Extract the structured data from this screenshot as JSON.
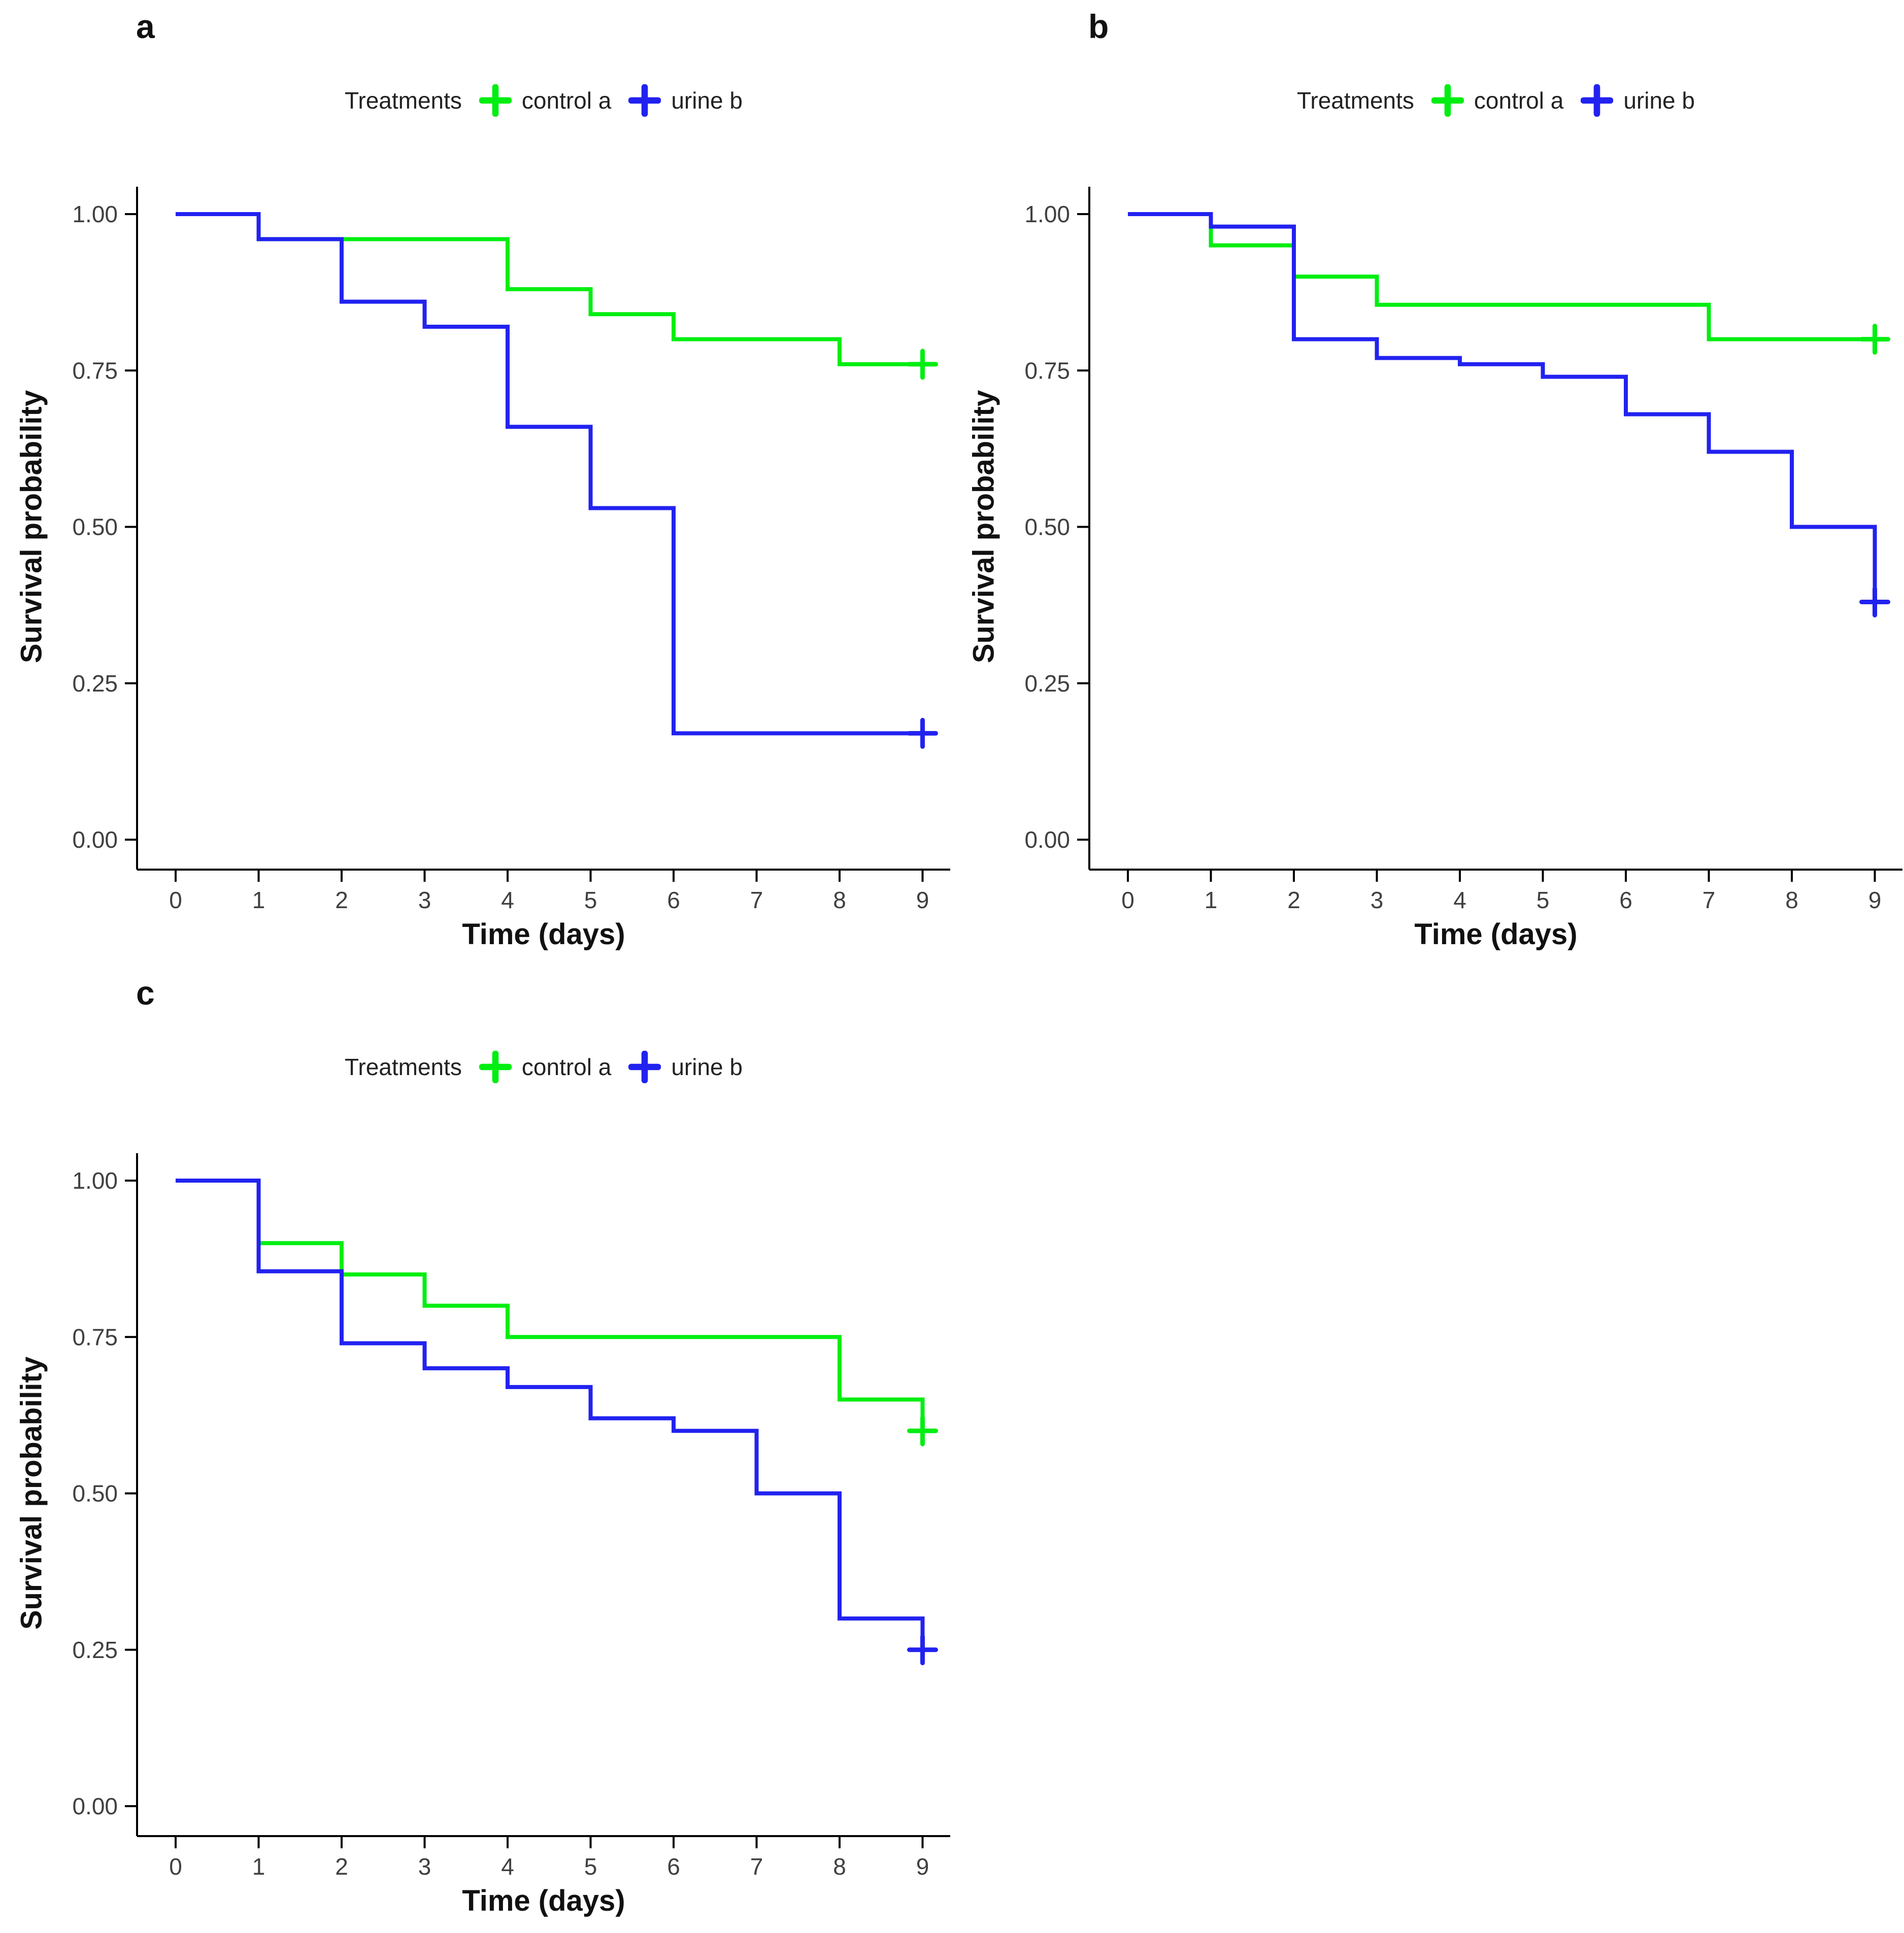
{
  "chart_data": [
    {
      "type": "line",
      "panel_label": "a",
      "legend_title": "Treatments",
      "xlabel": "Time (days)",
      "ylabel": "Survival probability",
      "xlim": [
        0,
        9.5
      ],
      "ylim": [
        0,
        1.05
      ],
      "grid": "off",
      "legend_position": "top-center",
      "x_ticks": {
        "labels": [
          "0",
          "1",
          "2",
          "3",
          "4",
          "5",
          "6",
          "7",
          "8",
          "9"
        ],
        "values": [
          0,
          1,
          2,
          3,
          4,
          5,
          6,
          7,
          8,
          9
        ]
      },
      "y_ticks": {
        "labels": [
          "1.00",
          "0.75",
          "0.50",
          "0.25",
          "0.00"
        ],
        "values": [
          1.0,
          0.75,
          0.5,
          0.25,
          0.0
        ]
      },
      "series": [
        {
          "name": "control a",
          "color": "#00EE11",
          "steps": [
            [
              0,
              1.0
            ],
            [
              1,
              0.96
            ],
            [
              4,
              0.88
            ],
            [
              5,
              0.84
            ],
            [
              6,
              0.8
            ],
            [
              8,
              0.76
            ]
          ],
          "end_time": 9,
          "censored": [
            [
              9,
              0.76
            ]
          ]
        },
        {
          "name": "urine b",
          "color": "#2222F0",
          "steps": [
            [
              0,
              1.0
            ],
            [
              1,
              0.96
            ],
            [
              2,
              0.86
            ],
            [
              3,
              0.82
            ],
            [
              4,
              0.66
            ],
            [
              5,
              0.53
            ],
            [
              6,
              0.17
            ]
          ],
          "end_time": 9,
          "censored": [
            [
              9,
              0.17
            ]
          ]
        }
      ]
    },
    {
      "type": "line",
      "panel_label": "b",
      "legend_title": "Treatments",
      "xlabel": "Time (days)",
      "ylabel": "Survival probability",
      "xlim": [
        0,
        9.5
      ],
      "ylim": [
        0,
        1.05
      ],
      "grid": "off",
      "legend_position": "top-center",
      "x_ticks": {
        "labels": [
          "0",
          "1",
          "2",
          "3",
          "4",
          "5",
          "6",
          "7",
          "8",
          "9"
        ],
        "values": [
          0,
          1,
          2,
          3,
          4,
          5,
          6,
          7,
          8,
          9
        ]
      },
      "y_ticks": {
        "labels": [
          "1.00",
          "0.75",
          "0.50",
          "0.25",
          "0.00"
        ],
        "values": [
          1.0,
          0.75,
          0.5,
          0.25,
          0.0
        ]
      },
      "series": [
        {
          "name": "control a",
          "color": "#00EE11",
          "steps": [
            [
              0,
              1.0
            ],
            [
              1,
              0.95
            ],
            [
              2,
              0.9
            ],
            [
              3,
              0.855
            ],
            [
              7,
              0.8
            ]
          ],
          "end_time": 9,
          "censored": [
            [
              9,
              0.8
            ]
          ]
        },
        {
          "name": "urine b",
          "color": "#2222F0",
          "steps": [
            [
              0,
              1.0
            ],
            [
              1,
              0.98
            ],
            [
              2,
              0.8
            ],
            [
              3,
              0.77
            ],
            [
              4,
              0.76
            ],
            [
              5,
              0.74
            ],
            [
              6,
              0.68
            ],
            [
              7,
              0.62
            ],
            [
              8,
              0.5
            ],
            [
              9,
              0.38
            ]
          ],
          "end_time": 9,
          "censored": [
            [
              9,
              0.38
            ]
          ]
        }
      ]
    },
    {
      "type": "line",
      "panel_label": "c",
      "legend_title": "Treatments",
      "xlabel": "Time (days)",
      "ylabel": "Survival probability",
      "xlim": [
        0,
        9.5
      ],
      "ylim": [
        0,
        1.05
      ],
      "grid": "off",
      "legend_position": "top-center",
      "x_ticks": {
        "labels": [
          "0",
          "1",
          "2",
          "3",
          "4",
          "5",
          "6",
          "7",
          "8",
          "9"
        ],
        "values": [
          0,
          1,
          2,
          3,
          4,
          5,
          6,
          7,
          8,
          9
        ]
      },
      "y_ticks": {
        "labels": [
          "1.00",
          "0.75",
          "0.50",
          "0.25",
          "0.00"
        ],
        "values": [
          1.0,
          0.75,
          0.5,
          0.25,
          0.0
        ]
      },
      "series": [
        {
          "name": "control a",
          "color": "#00EE11",
          "steps": [
            [
              0,
              1.0
            ],
            [
              1,
              0.9
            ],
            [
              2,
              0.85
            ],
            [
              3,
              0.8
            ],
            [
              4,
              0.75
            ],
            [
              8,
              0.65
            ],
            [
              9,
              0.6
            ]
          ],
          "end_time": 9,
          "censored": [
            [
              9,
              0.6
            ]
          ]
        },
        {
          "name": "urine b",
          "color": "#2222F0",
          "steps": [
            [
              0,
              1.0
            ],
            [
              1,
              0.855
            ],
            [
              2,
              0.74
            ],
            [
              3,
              0.7
            ],
            [
              4,
              0.67
            ],
            [
              5,
              0.62
            ],
            [
              6,
              0.6
            ],
            [
              7,
              0.5
            ],
            [
              8,
              0.3
            ],
            [
              9,
              0.25
            ]
          ],
          "end_time": 9,
          "censored": [
            [
              9,
              0.25
            ]
          ]
        }
      ]
    }
  ]
}
